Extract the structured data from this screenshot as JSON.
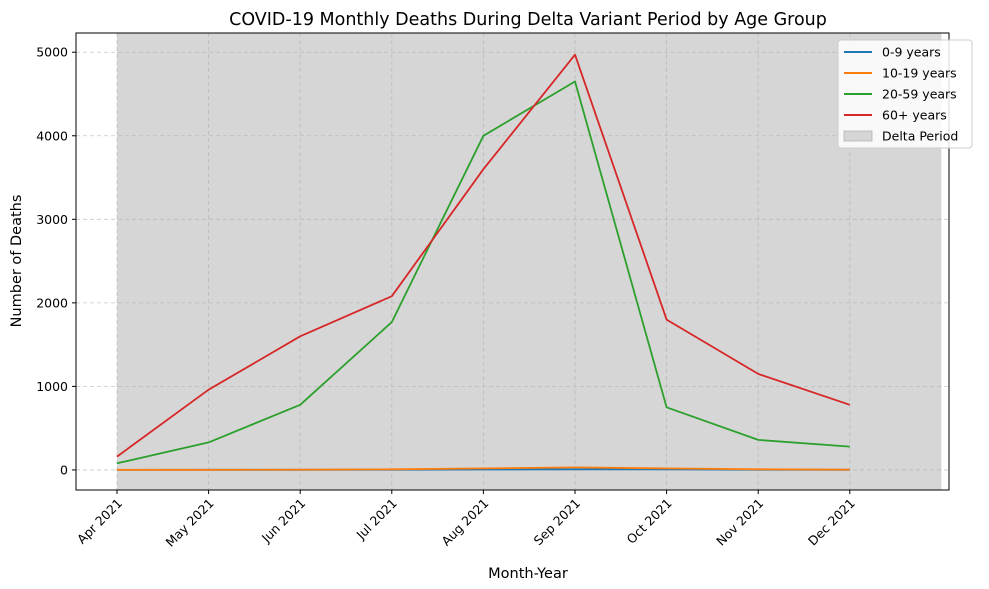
{
  "chart_data": {
    "type": "line",
    "title": "COVID-19 Monthly Deaths During Delta Variant Period by Age Group",
    "xlabel": "Month-Year",
    "ylabel": "Number of Deaths",
    "categories": [
      "Apr 2021",
      "May 2021",
      "Jun 2021",
      "Jul 2021",
      "Aug 2021",
      "Sep 2021",
      "Oct 2021",
      "Nov 2021",
      "Dec 2021"
    ],
    "ylim": [
      -240,
      5230
    ],
    "yticks": [
      0,
      1000,
      2000,
      3000,
      4000,
      5000
    ],
    "grid": true,
    "legend_position": "top-right",
    "shaded_region": {
      "label": "Delta Period",
      "start": "Apr 2021",
      "end": "Jan 2022",
      "color": "#d6d6d6"
    },
    "series": [
      {
        "name": "0-9 years",
        "color": "#1f77b4",
        "values": [
          1,
          2,
          2,
          3,
          5,
          8,
          6,
          3,
          2
        ]
      },
      {
        "name": "10-19 years",
        "color": "#ff7f0e",
        "values": [
          2,
          2,
          3,
          8,
          18,
          30,
          18,
          8,
          3
        ]
      },
      {
        "name": "20-59 years",
        "color": "#2ca02c",
        "values": [
          80,
          330,
          780,
          1770,
          4000,
          4650,
          750,
          360,
          280
        ]
      },
      {
        "name": "60+ years",
        "color": "#d62728",
        "values": [
          160,
          960,
          1600,
          2080,
          3600,
          4970,
          1800,
          1150,
          780
        ]
      }
    ]
  }
}
